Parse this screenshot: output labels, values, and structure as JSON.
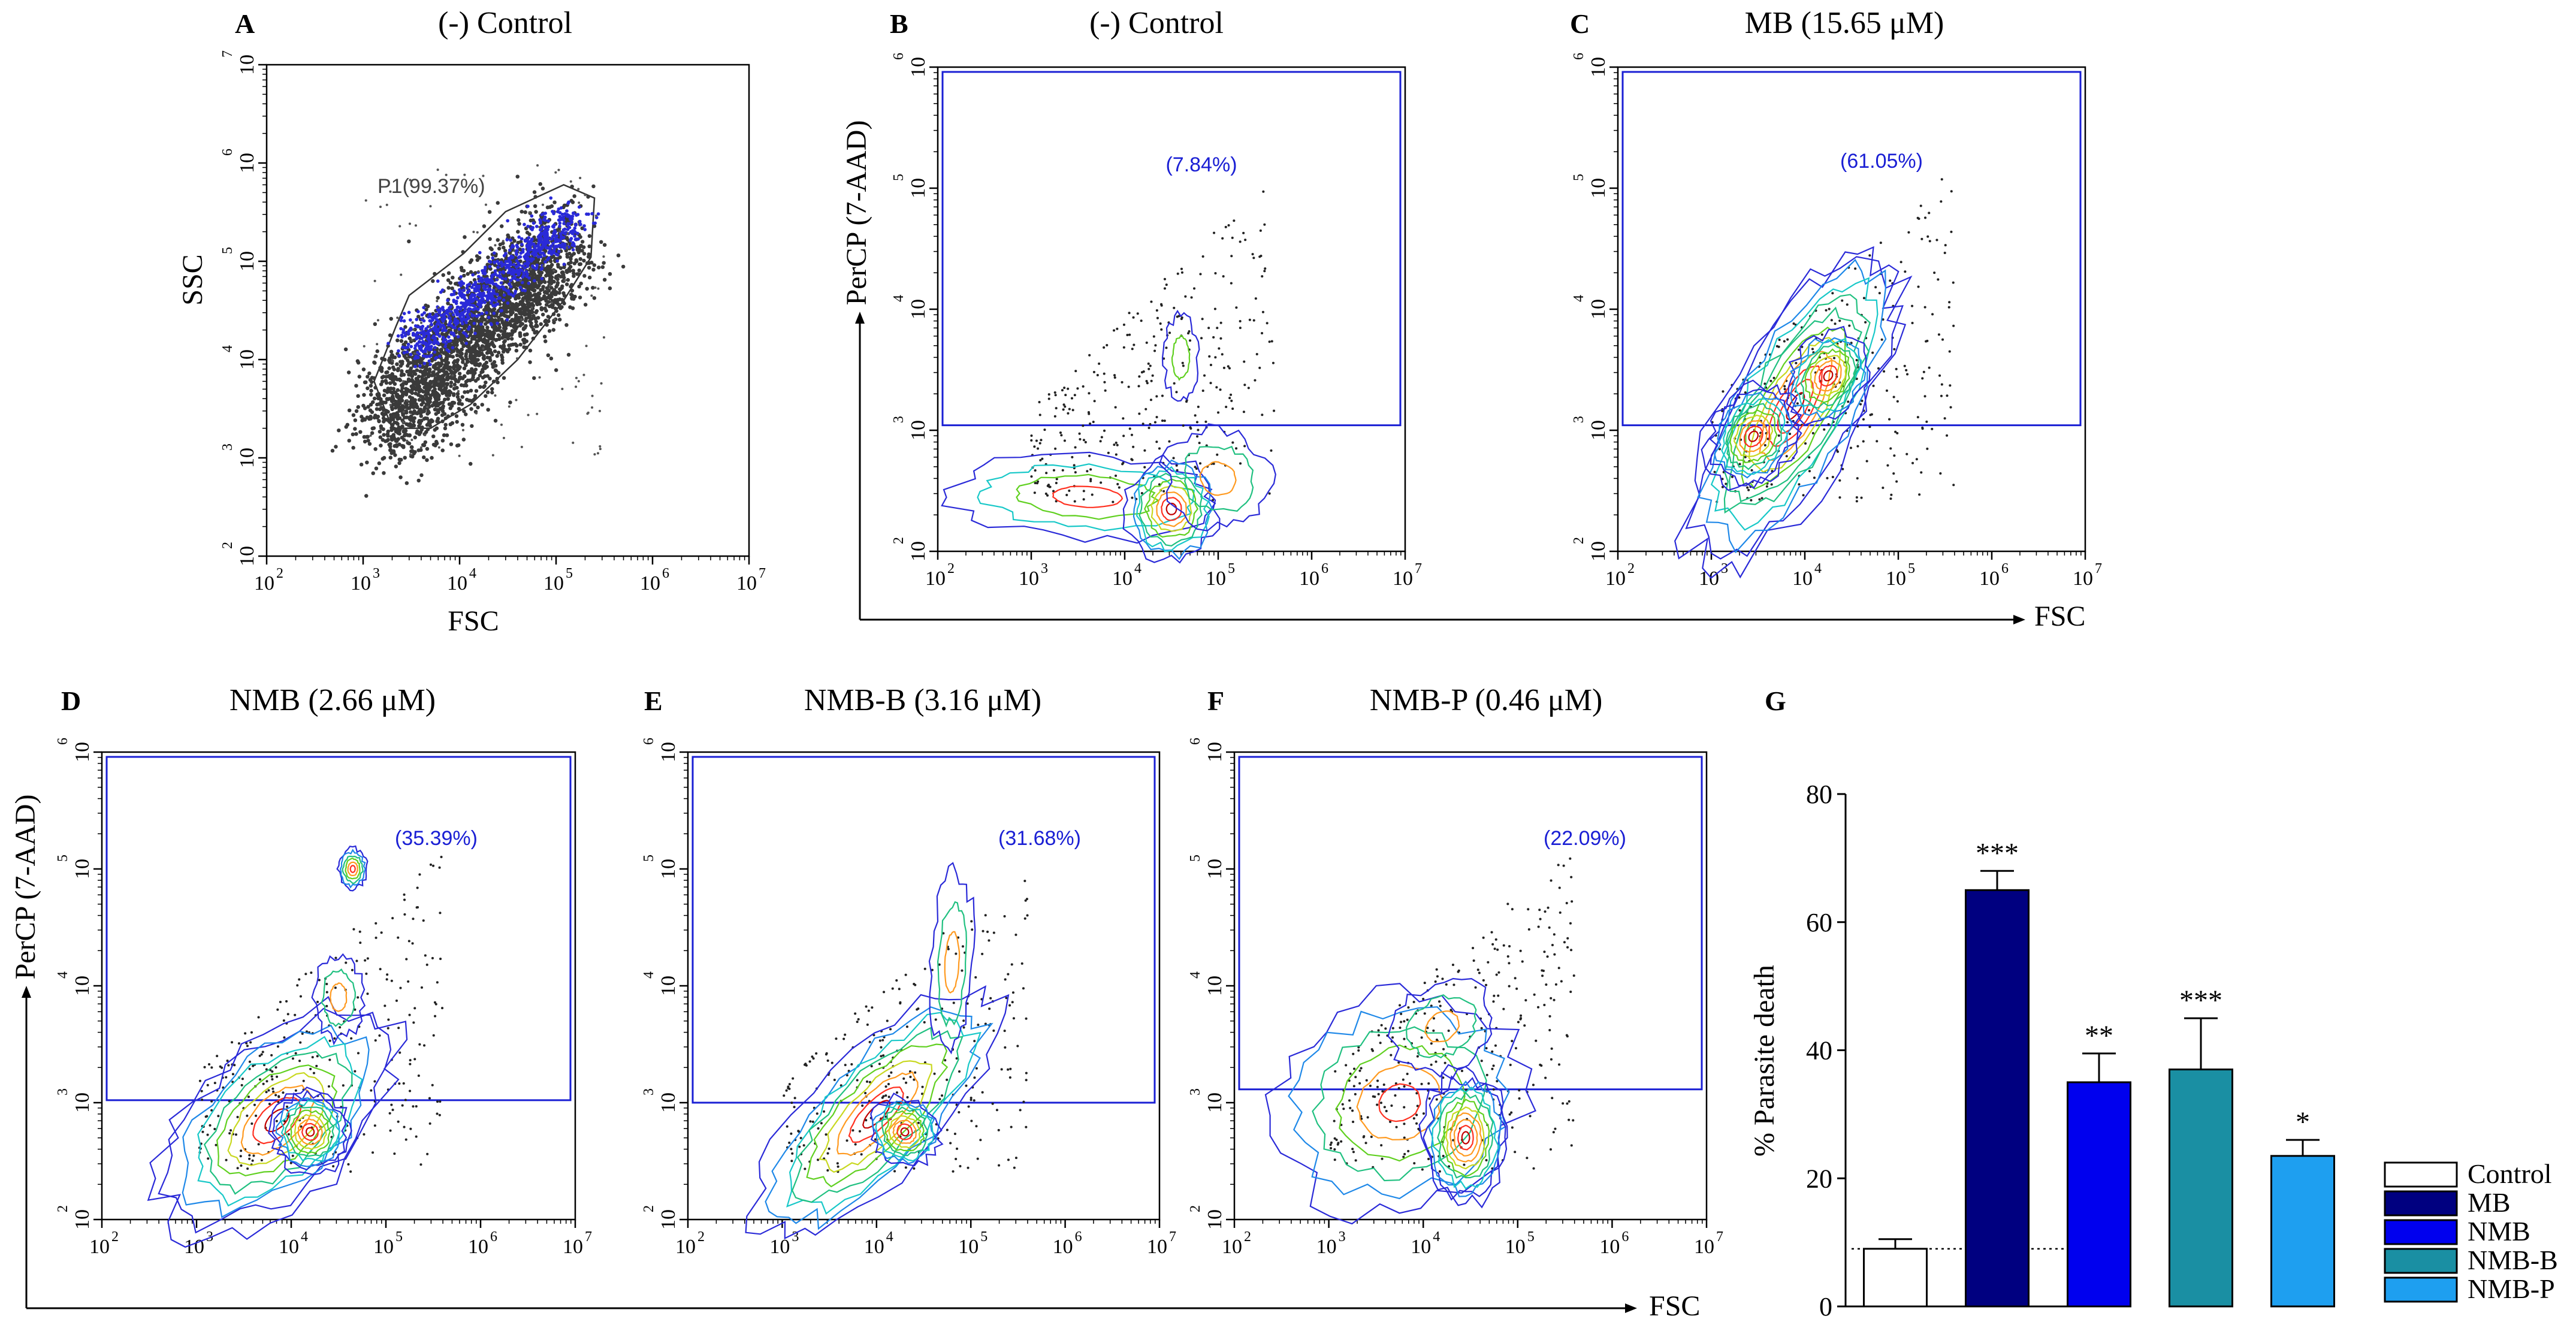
{
  "chart_data": [
    {
      "panel": "A",
      "type": "scatter",
      "title": "(-) Control",
      "xlabel": "FSC",
      "ylabel": "SSC",
      "axis_scale": "log",
      "xlim": [
        100,
        10000000
      ],
      "ylim": [
        100,
        10000000
      ],
      "gate": {
        "name": "P1",
        "label": "P1(99.37%)"
      }
    },
    {
      "panel": "B",
      "type": "scatter",
      "title": "(-) Control",
      "xlabel": "FSC",
      "ylabel": "PerCP (7-AAD)",
      "axis_scale": "log",
      "xlim": [
        100,
        10000000
      ],
      "ylim": [
        100,
        1000000
      ],
      "gate_label": "(7.84%)",
      "gate_percent": 7.84
    },
    {
      "panel": "C",
      "type": "scatter",
      "title": "MB (15.65 μM)",
      "xlabel": "FSC",
      "ylabel": "PerCP (7-AAD)",
      "axis_scale": "log",
      "xlim": [
        100,
        10000000
      ],
      "ylim": [
        100,
        1000000
      ],
      "gate_label": "(61.05%)",
      "gate_percent": 61.05
    },
    {
      "panel": "D",
      "type": "scatter",
      "title": "NMB (2.66 μM)",
      "xlabel": "FSC",
      "ylabel": "PerCP (7-AAD)",
      "axis_scale": "log",
      "xlim": [
        100,
        10000000
      ],
      "ylim": [
        100,
        1000000
      ],
      "gate_label": "(35.39%)",
      "gate_percent": 35.39
    },
    {
      "panel": "E",
      "type": "scatter",
      "title": "NMB-B (3.16 μM)",
      "xlabel": "FSC",
      "ylabel": "PerCP (7-AAD)",
      "axis_scale": "log",
      "xlim": [
        100,
        10000000
      ],
      "ylim": [
        100,
        1000000
      ],
      "gate_label": "(31.68%)",
      "gate_percent": 31.68
    },
    {
      "panel": "F",
      "type": "scatter",
      "title": "NMB-P (0.46 μM)",
      "xlabel": "FSC",
      "ylabel": "PerCP (7-AAD)",
      "axis_scale": "log",
      "xlim": [
        100,
        10000000
      ],
      "ylim": [
        100,
        1000000
      ],
      "gate_label": "(22.09%)",
      "gate_percent": 22.09
    },
    {
      "panel": "G",
      "type": "bar",
      "title": "",
      "xlabel": "",
      "ylabel": "% Parasite death",
      "ylim": [
        0,
        80
      ],
      "yticks": [
        0,
        20,
        40,
        60,
        80
      ],
      "categories": [
        "Control",
        "MB",
        "NMB",
        "NMB-B",
        "NMB-P"
      ],
      "values": [
        9,
        65,
        35,
        37,
        23.5
      ],
      "errors": [
        1.5,
        3,
        4.5,
        8,
        2.5
      ],
      "significance": [
        "",
        "***",
        "**",
        "***",
        "*"
      ],
      "colors": [
        "#ffffff",
        "#000080",
        "#0000ee",
        "#1a8fa3",
        "#1e9ff0"
      ],
      "reference_line": 9,
      "legend_position": "bottom-right"
    }
  ],
  "tick_labels": {
    "y7": [
      "10",
      "10",
      "10",
      "10",
      "10",
      "10"
    ],
    "exp7": [
      "2",
      "3",
      "4",
      "5",
      "6",
      "7"
    ],
    "exp6": [
      "2",
      "3",
      "4",
      "5",
      "6"
    ]
  },
  "shared_axis": {
    "xlabel": "FSC",
    "ylabel": "PerCP (7-AAD)"
  },
  "colors": {
    "gate": "#1a1fd4",
    "scatter_gray": "#3a3a3a",
    "scatter_blue": "#2a2ad8",
    "contour_levels": [
      "#2a2ad8",
      "#1e88e8",
      "#18c8c8",
      "#20c080",
      "#60d020",
      "#c8d820",
      "#ff9a20",
      "#ff3020",
      "#c00000"
    ]
  }
}
